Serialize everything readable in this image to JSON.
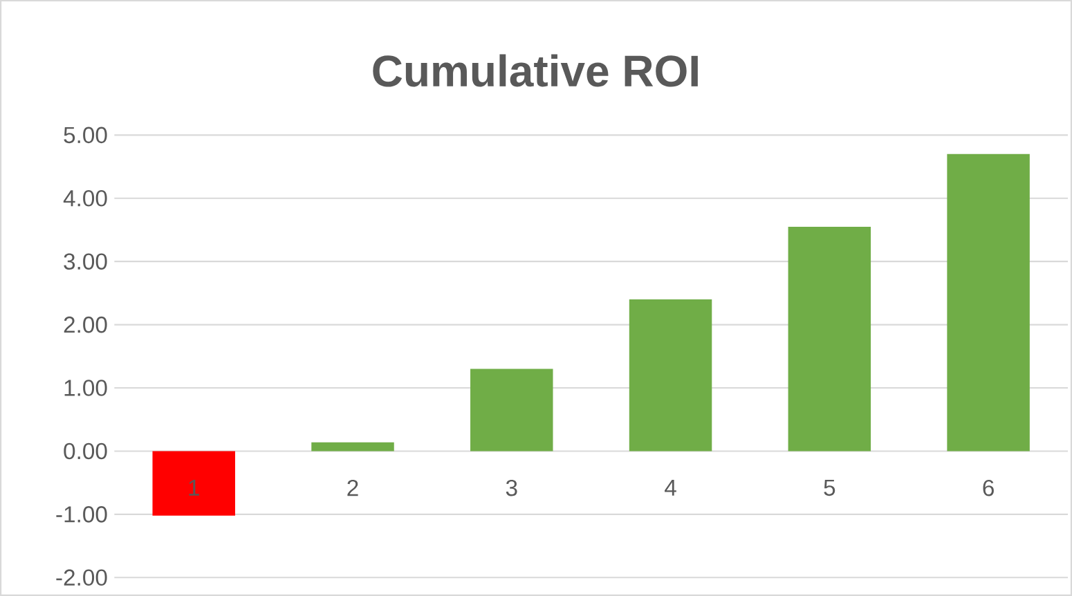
{
  "chart_data": {
    "type": "bar",
    "title": "Cumulative ROI",
    "categories": [
      "1",
      "2",
      "3",
      "4",
      "5",
      "6"
    ],
    "values": [
      -1.02,
      0.14,
      1.3,
      2.4,
      3.55,
      4.7
    ],
    "colors": [
      "#ff0000",
      "#70ad47",
      "#70ad47",
      "#70ad47",
      "#70ad47",
      "#70ad47"
    ],
    "ylim": [
      -2,
      5
    ],
    "yticks": [
      {
        "value": -2,
        "label": "-2.00"
      },
      {
        "value": -1,
        "label": "-1.00"
      },
      {
        "value": 0,
        "label": "0.00"
      },
      {
        "value": 1,
        "label": "1.00"
      },
      {
        "value": 2,
        "label": "2.00"
      },
      {
        "value": 3,
        "label": "3.00"
      },
      {
        "value": 4,
        "label": "4.00"
      },
      {
        "value": 5,
        "label": "5.00"
      }
    ],
    "grid": "y"
  }
}
